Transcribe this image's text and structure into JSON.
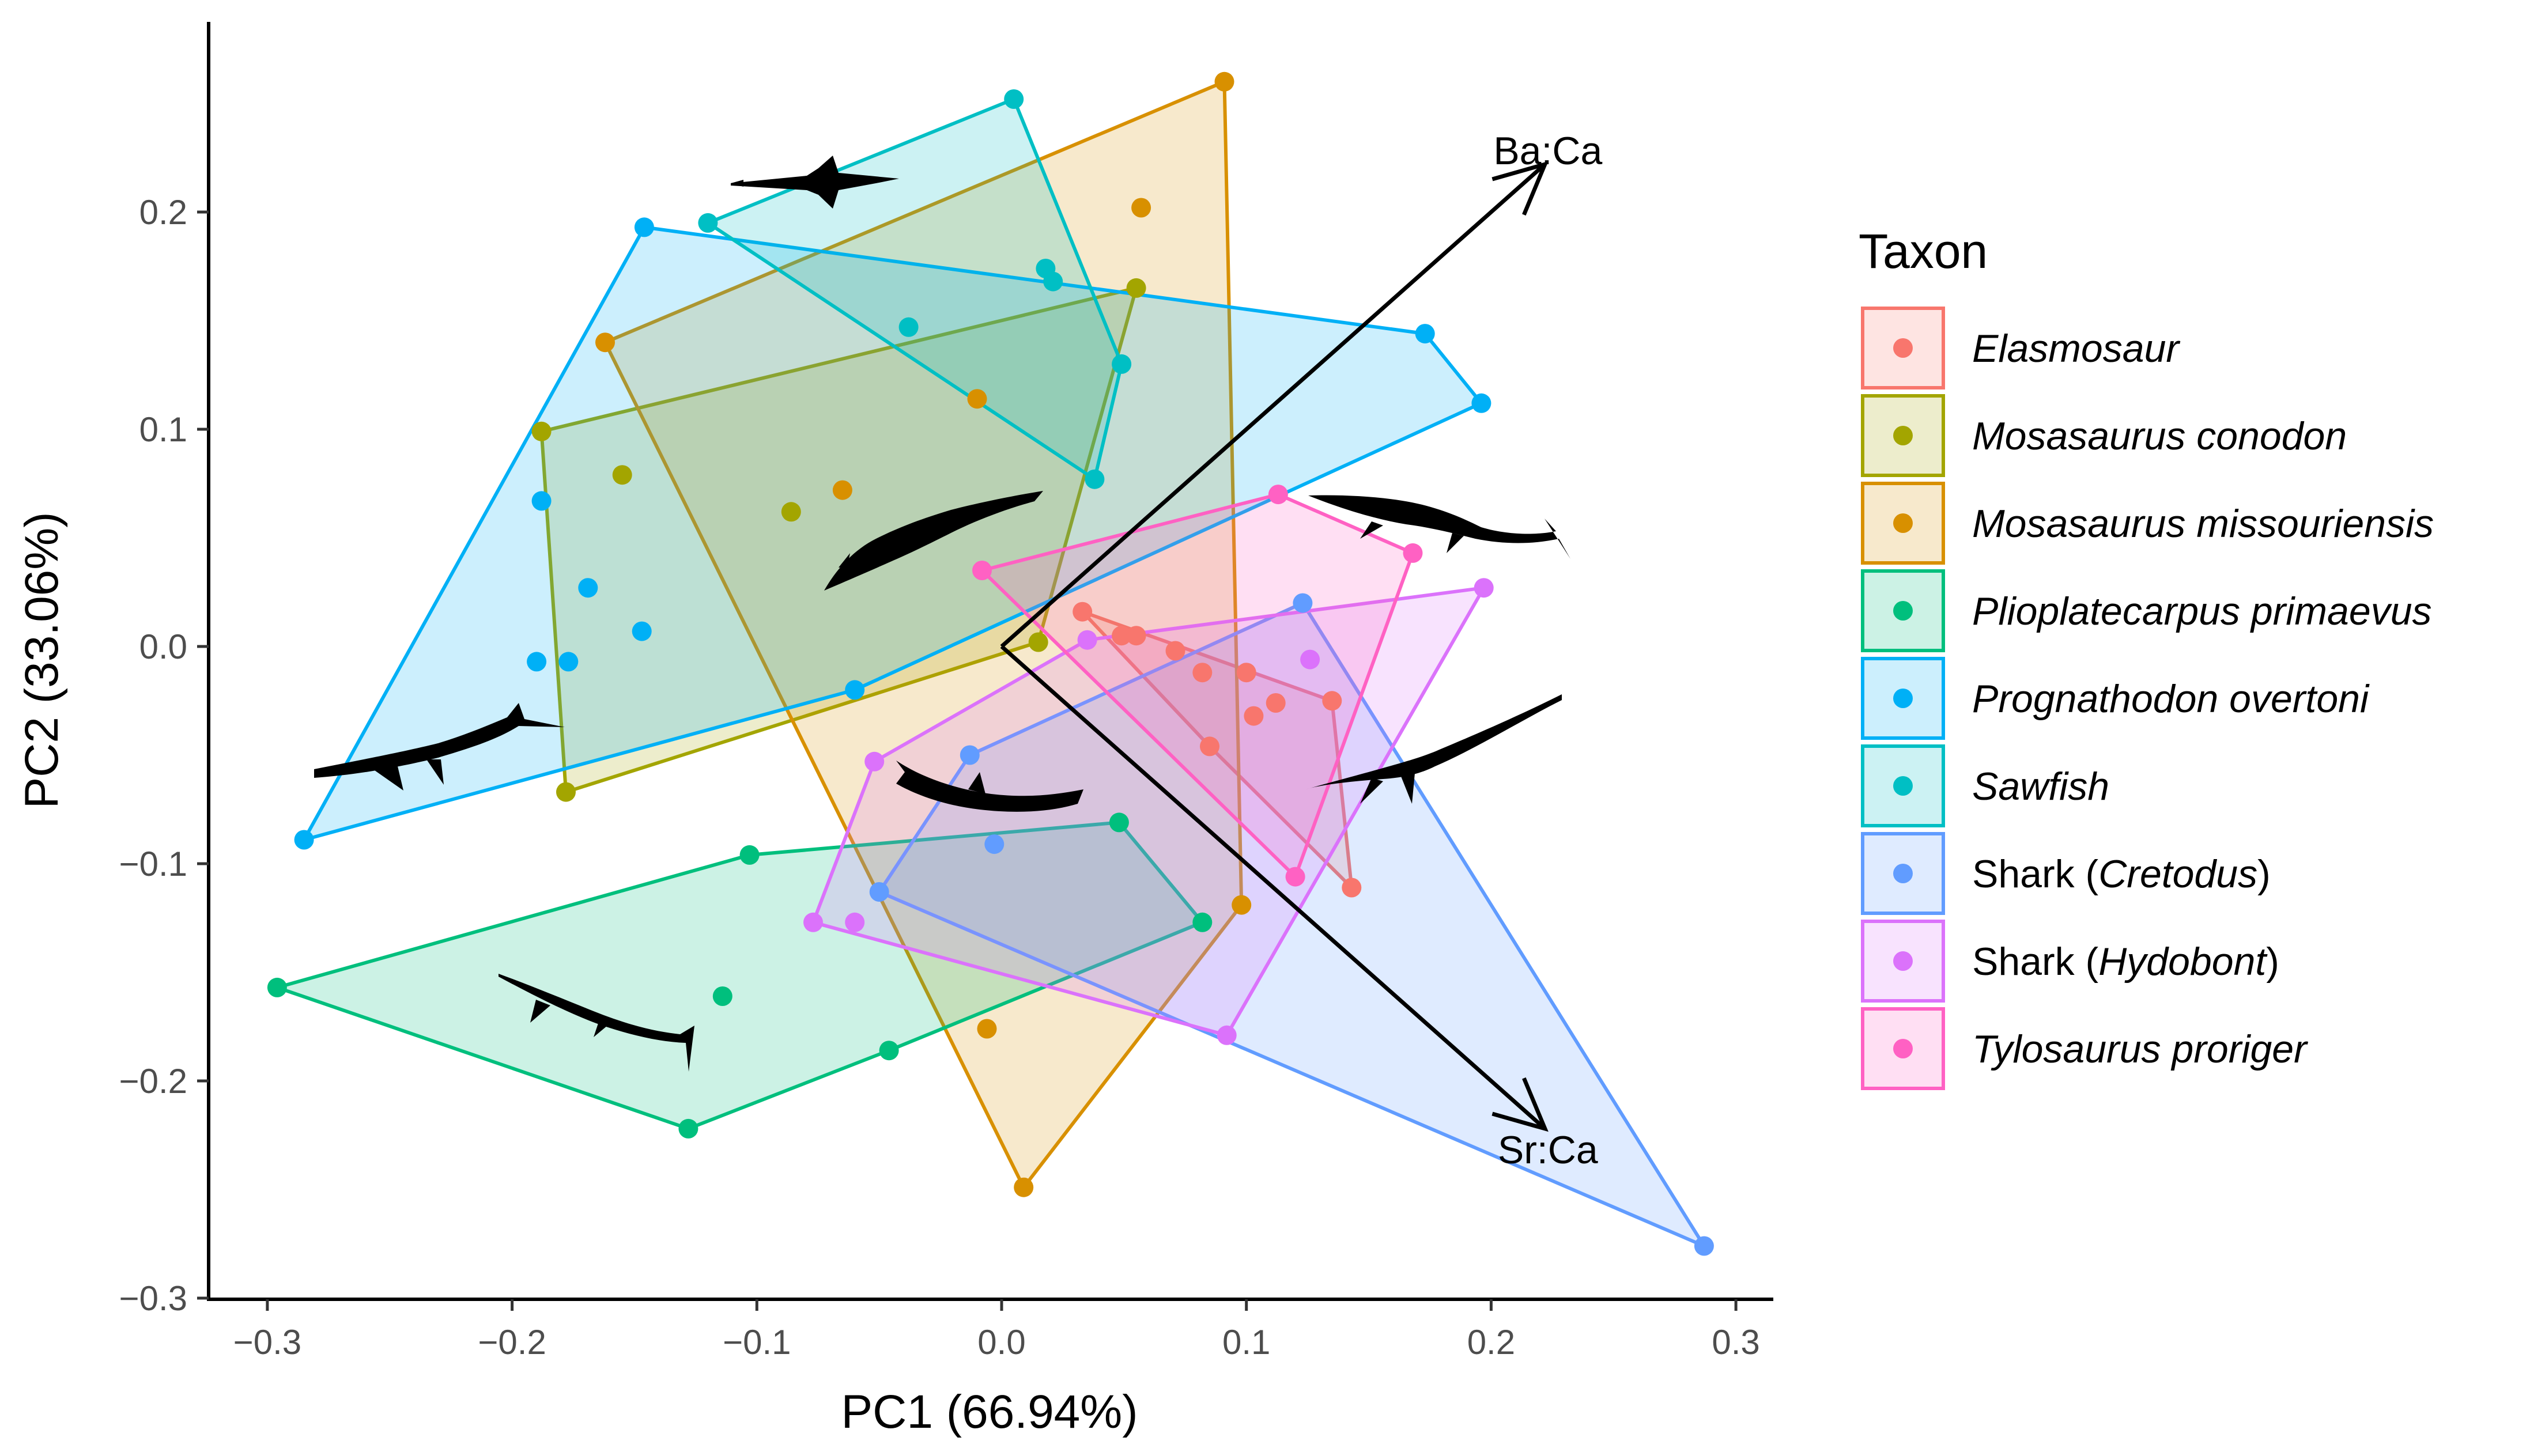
{
  "chart_data": {
    "type": "scatter",
    "title": "",
    "xlabel": "PC1 (66.94%)",
    "ylabel": "PC2 (33.06%)",
    "xlim": [
      -0.33,
      0.31
    ],
    "ylim": [
      -0.305,
      0.285
    ],
    "xticks": [
      -0.3,
      -0.2,
      -0.1,
      0.0,
      0.1,
      0.2,
      0.3
    ],
    "xtick_labels": [
      "−0.3",
      "−0.2",
      "−0.1",
      "0.0",
      "0.1",
      "0.2",
      "0.3"
    ],
    "yticks": [
      -0.3,
      -0.2,
      -0.1,
      0.0,
      0.1,
      0.2
    ],
    "ytick_labels": [
      "−0.3",
      "−0.2",
      "−0.1",
      "0.0",
      "0.1",
      "0.2"
    ],
    "grid": false,
    "legend": {
      "title": "Taxon",
      "placement": "right"
    },
    "loadings": [
      {
        "label": "Ba:Ca",
        "x": 0.222,
        "y": 0.222
      },
      {
        "label": "Sr:Ca",
        "x": 0.222,
        "y": -0.222
      }
    ],
    "series": [
      {
        "name": "Elasmosaur",
        "italic_name": "Elasmosaur",
        "prefix": "",
        "suffix": "",
        "color": "#F8766D",
        "points": [
          [
            0.033,
            0.016
          ],
          [
            0.049,
            0.005
          ],
          [
            0.055,
            0.005
          ],
          [
            0.071,
            -0.002
          ],
          [
            0.082,
            -0.012
          ],
          [
            0.1,
            -0.012
          ],
          [
            0.085,
            -0.046
          ],
          [
            0.103,
            -0.032
          ],
          [
            0.112,
            -0.026
          ],
          [
            0.135,
            -0.025
          ],
          [
            0.143,
            -0.111
          ]
        ]
      },
      {
        "name": "Mosasaurus conodon",
        "italic_name": "Mosasaurus conodon",
        "prefix": "",
        "suffix": "",
        "color": "#A3A500",
        "points": [
          [
            -0.188,
            0.099
          ],
          [
            -0.155,
            0.079
          ],
          [
            -0.086,
            0.062
          ],
          [
            -0.178,
            -0.067
          ],
          [
            0.055,
            0.165
          ],
          [
            0.015,
            0.002
          ]
        ]
      },
      {
        "name": "Mosasaurus missouriensis",
        "italic_name": "Mosasaurus missouriensis",
        "prefix": "",
        "suffix": "",
        "color": "#D89000",
        "points": [
          [
            0.091,
            0.26
          ],
          [
            0.057,
            0.202
          ],
          [
            -0.162,
            0.14
          ],
          [
            -0.01,
            0.114
          ],
          [
            -0.065,
            0.072
          ],
          [
            0.098,
            -0.119
          ],
          [
            -0.006,
            -0.176
          ],
          [
            0.009,
            -0.249
          ]
        ]
      },
      {
        "name": "Plioplatecarpus primaevus",
        "italic_name": "Plioplatecarpus primaevus",
        "prefix": "",
        "suffix": "",
        "color": "#00BF7D",
        "points": [
          [
            -0.296,
            -0.157
          ],
          [
            -0.103,
            -0.096
          ],
          [
            -0.114,
            -0.161
          ],
          [
            -0.128,
            -0.222
          ],
          [
            -0.046,
            -0.186
          ],
          [
            0.048,
            -0.081
          ],
          [
            0.082,
            -0.127
          ]
        ]
      },
      {
        "name": "Prognathodon overtoni",
        "italic_name": "Prognathodon overtoni",
        "prefix": "",
        "suffix": "",
        "color": "#00B0F6",
        "points": [
          [
            -0.146,
            0.193
          ],
          [
            -0.188,
            0.067
          ],
          [
            -0.169,
            0.027
          ],
          [
            -0.147,
            0.007
          ],
          [
            -0.19,
            -0.007
          ],
          [
            -0.177,
            -0.007
          ],
          [
            -0.285,
            -0.089
          ],
          [
            -0.06,
            -0.02
          ],
          [
            0.173,
            0.144
          ],
          [
            0.196,
            0.112
          ]
        ]
      },
      {
        "name": "Sawfish",
        "italic_name": "Sawfish",
        "prefix": "",
        "suffix": "",
        "color": "#00BFC4",
        "points": [
          [
            0.005,
            0.252
          ],
          [
            -0.12,
            0.195
          ],
          [
            0.018,
            0.174
          ],
          [
            0.021,
            0.168
          ],
          [
            -0.038,
            0.147
          ],
          [
            0.049,
            0.13
          ],
          [
            0.038,
            0.077
          ]
        ]
      },
      {
        "name": "Shark (Cretodus)",
        "italic_name": "Cretodus",
        "prefix": "Shark (",
        "suffix": ")",
        "color": "#619CFF",
        "points": [
          [
            0.123,
            0.02
          ],
          [
            -0.013,
            -0.05
          ],
          [
            -0.003,
            -0.091
          ],
          [
            -0.05,
            -0.113
          ],
          [
            0.287,
            -0.276
          ]
        ]
      },
      {
        "name": "Shark (Hydobont)",
        "italic_name": "Hydobont",
        "prefix": "Shark (",
        "suffix": ")",
        "color": "#DB72FB",
        "points": [
          [
            0.197,
            0.027
          ],
          [
            0.126,
            -0.006
          ],
          [
            0.035,
            0.003
          ],
          [
            -0.052,
            -0.053
          ],
          [
            -0.077,
            -0.127
          ],
          [
            -0.06,
            -0.127
          ],
          [
            0.092,
            -0.179
          ]
        ]
      },
      {
        "name": "Tylosaurus proriger",
        "italic_name": "Tylosaurus proriger",
        "prefix": "",
        "suffix": "",
        "color": "#FF61C3",
        "points": [
          [
            0.113,
            0.07
          ],
          [
            0.168,
            0.043
          ],
          [
            -0.008,
            0.035
          ],
          [
            0.12,
            -0.106
          ]
        ]
      }
    ]
  },
  "silhouettes": [
    {
      "name": "sawfish-silhouette",
      "animal": "sawfish"
    },
    {
      "name": "mosasaur-silhouette",
      "animal": "mosasaur"
    },
    {
      "name": "elasmosaur-silhouette",
      "animal": "elasmosaur"
    },
    {
      "name": "mosasaur-right-silhouette",
      "animal": "mosasaur"
    },
    {
      "name": "plesiosaur-right-silhouette",
      "animal": "plesiosaur"
    },
    {
      "name": "shark-silhouette",
      "animal": "shark"
    },
    {
      "name": "plioplatecarpus-silhouette",
      "animal": "mosasaur"
    }
  ]
}
